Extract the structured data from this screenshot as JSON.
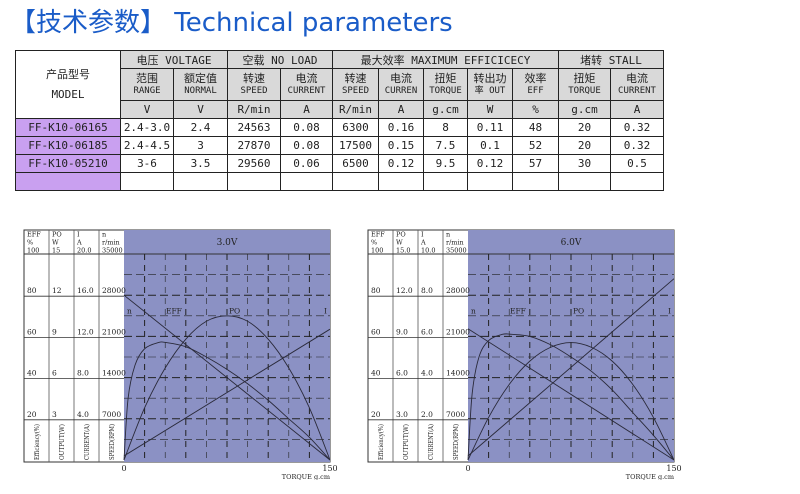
{
  "title": "【技术参数】 Technical parameters",
  "table": {
    "model_header": [
      "产品型号",
      "MODEL"
    ],
    "groups": [
      "电压 VOLTAGE",
      "空载 NO LOAD",
      "最大效率 MAXIMUM EFFICICECY",
      "堵转 STALL"
    ],
    "subheaders": [
      [
        "范围",
        "RANGE"
      ],
      [
        "额定值",
        "NORMAL"
      ],
      [
        "转速",
        "SPEED"
      ],
      [
        "电流",
        "CURRENT"
      ],
      [
        "转速",
        "SPEED"
      ],
      [
        "电流",
        "CURREN"
      ],
      [
        "扭矩",
        "TORQUE"
      ],
      [
        "转出功",
        "率 OUT"
      ],
      [
        "效率",
        "EFF"
      ],
      [
        "扭矩",
        "TORQUE"
      ],
      [
        "电流",
        "CURRENT"
      ]
    ],
    "units": [
      "V",
      "V",
      "R/min",
      "A",
      "R/min",
      "A",
      "g.cm",
      "W",
      "%",
      "g.cm",
      "A"
    ],
    "rows": [
      {
        "model": "FF-K10-06165",
        "values": [
          "2.4-3.0",
          "2.4",
          "24563",
          "0.08",
          "6300",
          "0.16",
          "8",
          "0.11",
          "48",
          "20",
          "0.32"
        ]
      },
      {
        "model": "FF-K10-06185",
        "values": [
          "2.4-4.5",
          "3",
          "27870",
          "0.08",
          "17500",
          "0.15",
          "7.5",
          "0.1",
          "52",
          "20",
          "0.32"
        ]
      },
      {
        "model": "FF-K10-05210",
        "values": [
          "3-6",
          "3.5",
          "29560",
          "0.06",
          "6500",
          "0.12",
          "9.5",
          "0.12",
          "57",
          "30",
          "0.5"
        ]
      },
      {
        "model": "",
        "values": [
          "",
          "",
          "",
          "",
          "",
          "",
          "",
          "",
          "",
          "",
          ""
        ]
      }
    ]
  },
  "colors": {
    "title": "#1a5cc8",
    "model_cell": "#c9a0f0",
    "plot_bg": "#8b91c4",
    "header_bg": "#d9d9d9"
  },
  "chart_data": [
    {
      "type": "line",
      "title": "3.0V",
      "xlabel": "TORQUE g.cm",
      "xlim": [
        0,
        150
      ],
      "x_ticks": [
        "0",
        "150"
      ],
      "axes": [
        {
          "head": [
            "EFF",
            "%",
            "100"
          ],
          "ticks": [
            "80",
            "60",
            "40",
            "20"
          ],
          "label": "Efficiency(%)",
          "max": 100
        },
        {
          "head": [
            "PO",
            "W",
            "15"
          ],
          "ticks": [
            "12",
            "9",
            "6",
            "3"
          ],
          "label": "OUTPUT(W)",
          "max": 15
        },
        {
          "head": [
            "I",
            "A",
            "20.0"
          ],
          "ticks": [
            "16.0",
            "12.0",
            "8.0",
            "4.0"
          ],
          "label": "CURRENT(A)",
          "max": 20
        },
        {
          "head": [
            "n",
            "r/min",
            "35000"
          ],
          "ticks": [
            "28000",
            "21000",
            "14000",
            "7000"
          ],
          "label": "SPEED(RPM)",
          "max": 35000
        }
      ],
      "curve_labels": [
        "n",
        "EFF",
        "PO",
        "I"
      ],
      "series": [
        {
          "name": "n",
          "axis": 3,
          "points": [
            [
              0,
              28000
            ],
            [
              150,
              0
            ]
          ]
        },
        {
          "name": "I",
          "axis": 2,
          "points": [
            [
              0,
              0.4
            ],
            [
              150,
              12.7
            ]
          ]
        },
        {
          "name": "EFF",
          "axis": 0,
          "points": [
            [
              0,
              0
            ],
            [
              3,
              30
            ],
            [
              8,
              46
            ],
            [
              15,
              54
            ],
            [
              25,
              57
            ],
            [
              31,
              57
            ],
            [
              45,
              55
            ],
            [
              60,
              50
            ],
            [
              75,
              44
            ],
            [
              90,
              37
            ],
            [
              105,
              29
            ],
            [
              120,
              20
            ],
            [
              135,
              11
            ],
            [
              150,
              0
            ]
          ]
        },
        {
          "name": "PO",
          "axis": 1,
          "points": [
            [
              0,
              0
            ],
            [
              15,
              3.8
            ],
            [
              30,
              6.7
            ],
            [
              45,
              8.8
            ],
            [
              60,
              10.1
            ],
            [
              75,
              10.5
            ],
            [
              90,
              10.1
            ],
            [
              105,
              8.8
            ],
            [
              120,
              6.7
            ],
            [
              135,
              3.8
            ],
            [
              150,
              0
            ]
          ]
        }
      ]
    },
    {
      "type": "line",
      "title": "6.0V",
      "xlabel": "TORQUE g.cm",
      "xlim": [
        0,
        150
      ],
      "x_ticks": [
        "0",
        "150"
      ],
      "axes": [
        {
          "head": [
            "EFF",
            "%",
            "100"
          ],
          "ticks": [
            "80",
            "60",
            "40",
            "20"
          ],
          "label": "Efficiency(%)",
          "max": 100
        },
        {
          "head": [
            "PO",
            "W",
            "15.0"
          ],
          "ticks": [
            "12.0",
            "9.0",
            "6.0",
            "3.0"
          ],
          "label": "OUTPUT(W)",
          "max": 15
        },
        {
          "head": [
            "I",
            "A",
            "10.0"
          ],
          "ticks": [
            "8.0",
            "6.0",
            "4.0",
            "2.0"
          ],
          "label": "CURRENT(A)",
          "max": 10
        },
        {
          "head": [
            "n",
            "r/min",
            "35000"
          ],
          "ticks": [
            "28000",
            "21000",
            "14000",
            "7000"
          ],
          "label": "SPEED(RPM)",
          "max": 35000
        }
      ],
      "curve_labels": [
        "n",
        "EFF",
        "PO",
        "I"
      ],
      "series": [
        {
          "name": "n",
          "axis": 3,
          "points": [
            [
              0,
              22300
            ],
            [
              150,
              0
            ]
          ]
        },
        {
          "name": "I",
          "axis": 2,
          "points": [
            [
              0,
              0.2
            ],
            [
              150,
              8.8
            ]
          ]
        },
        {
          "name": "EFF",
          "axis": 0,
          "points": [
            [
              0,
              0
            ],
            [
              3,
              32
            ],
            [
              8,
              50
            ],
            [
              15,
              58
            ],
            [
              25,
              61
            ],
            [
              32,
              61
            ],
            [
              45,
              60
            ],
            [
              60,
              56
            ],
            [
              75,
              50
            ],
            [
              90,
              43
            ],
            [
              105,
              34
            ],
            [
              120,
              23
            ],
            [
              135,
              12
            ],
            [
              150,
              0
            ]
          ]
        },
        {
          "name": "PO",
          "axis": 1,
          "points": [
            [
              0,
              0
            ],
            [
              15,
              3.1
            ],
            [
              30,
              5.5
            ],
            [
              45,
              7.2
            ],
            [
              60,
              8.2
            ],
            [
              75,
              8.55
            ],
            [
              90,
              8.2
            ],
            [
              105,
              7.2
            ],
            [
              120,
              5.5
            ],
            [
              135,
              3.1
            ],
            [
              150,
              0
            ]
          ]
        }
      ]
    }
  ]
}
